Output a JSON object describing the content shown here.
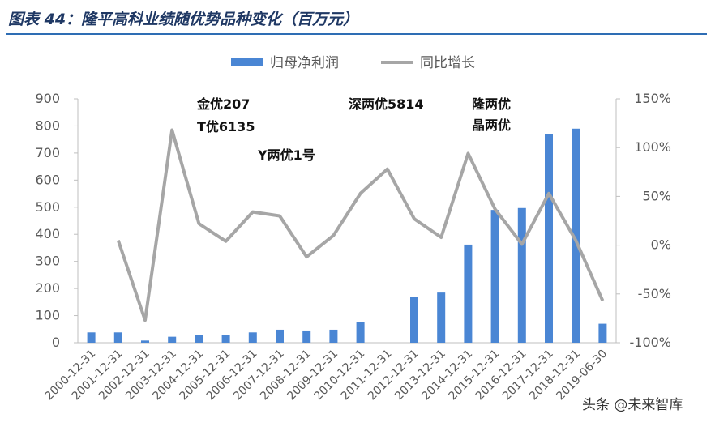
{
  "chart_data": {
    "type": "bar-line",
    "title": "图表 44：隆平高科业绩随优势品种变化（百万元）",
    "categories": [
      "2000-12-31",
      "2001-12-31",
      "2002-12-31",
      "2003-12-31",
      "2004-12-31",
      "2005-12-31",
      "2006-12-31",
      "2007-12-31",
      "2008-12-31",
      "2009-12-31",
      "2010-12-31",
      "2011-12-31",
      "2012-12-31",
      "2013-12-31",
      "2014-12-31",
      "2015-12-31",
      "2016-12-31",
      "2017-12-31",
      "2018-12-31",
      "2019-06-30"
    ],
    "series": [
      {
        "name": "归母净利润",
        "color": "#4a86d4",
        "values": [
          38,
          38,
          8,
          22,
          27,
          27,
          38,
          48,
          45,
          48,
          75,
          null,
          170,
          185,
          362,
          490,
          497,
          770,
          790,
          70
        ]
      },
      {
        "name": "同比增长",
        "color": "#a6a6a6",
        "axis": "y2",
        "values": [
          null,
          5,
          -77,
          118,
          22,
          4,
          34,
          30,
          -12,
          10,
          53,
          78,
          27,
          8,
          94,
          37,
          1,
          53,
          5,
          -57
        ]
      }
    ],
    "ylim": [
      0,
      900
    ],
    "yticks": [
      0,
      100,
      200,
      300,
      400,
      500,
      600,
      700,
      800,
      900
    ],
    "y2lim": [
      -100,
      150
    ],
    "y2ticks": [
      {
        "value": -100,
        "label": "-100%"
      },
      {
        "value": -50,
        "label": "-50%"
      },
      {
        "value": 0,
        "label": "0%"
      },
      {
        "value": 50,
        "label": "50%"
      },
      {
        "value": 100,
        "label": "100%"
      },
      {
        "value": 150,
        "label": "150%"
      }
    ],
    "annotations": [
      "金优207",
      "T优6135",
      "Y两优1号",
      "深两优5814",
      "隆两优",
      "晶两优"
    ],
    "watermark": "头条 @未来智库"
  }
}
